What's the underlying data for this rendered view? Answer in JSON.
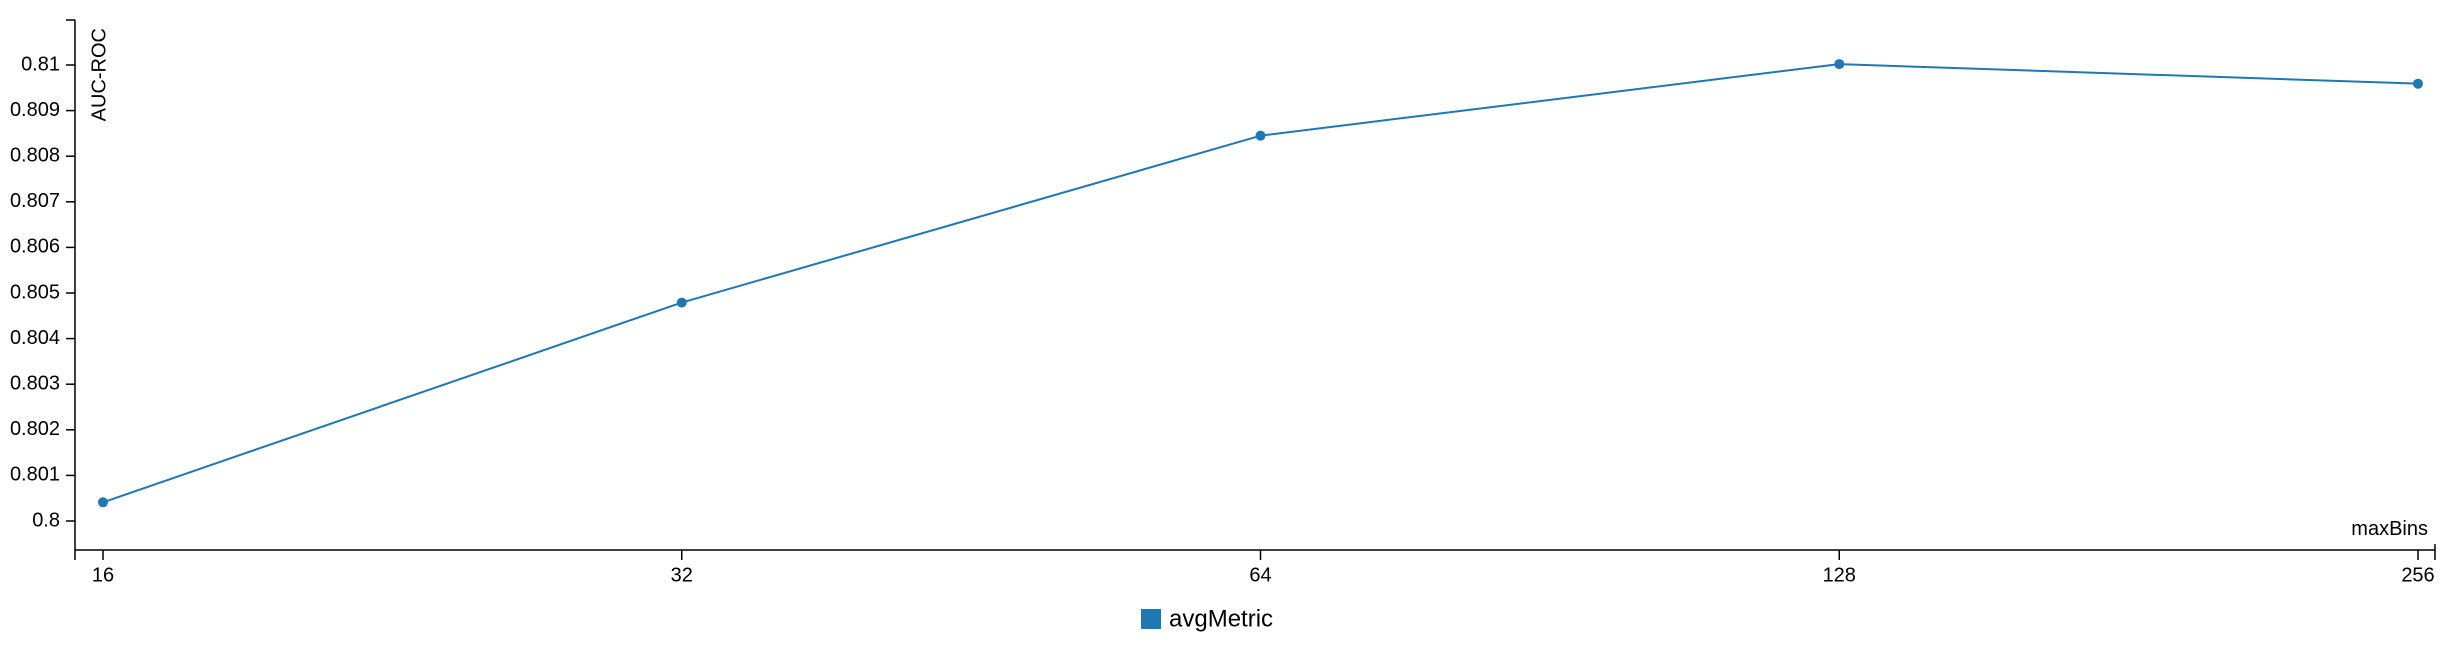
{
  "chart_data": {
    "type": "line",
    "x_categories": [
      16,
      32,
      64,
      128,
      256
    ],
    "series": [
      {
        "name": "avgMetric",
        "color": "#1f77b4",
        "values": [
          0.80041,
          0.80479,
          0.80845,
          0.81002,
          0.80959
        ]
      }
    ],
    "xlabel": "maxBins",
    "ylabel": "AUC-ROC",
    "ylim": [
      0.7994,
      0.8105
    ],
    "y_ticks": [
      0.8,
      0.801,
      0.802,
      0.803,
      0.804,
      0.805,
      0.806,
      0.807,
      0.808,
      0.809,
      0.81
    ],
    "y_tick_labels": [
      "0.8",
      "0.801",
      "0.802",
      "0.803",
      "0.804",
      "0.805",
      "0.806",
      "0.807",
      "0.808",
      "0.809",
      "0.81"
    ],
    "x_tick_labels": [
      "16",
      "32",
      "64",
      "128",
      "256"
    ],
    "x_scale": "log2",
    "grid": false,
    "legend_position": "bottom-center"
  }
}
